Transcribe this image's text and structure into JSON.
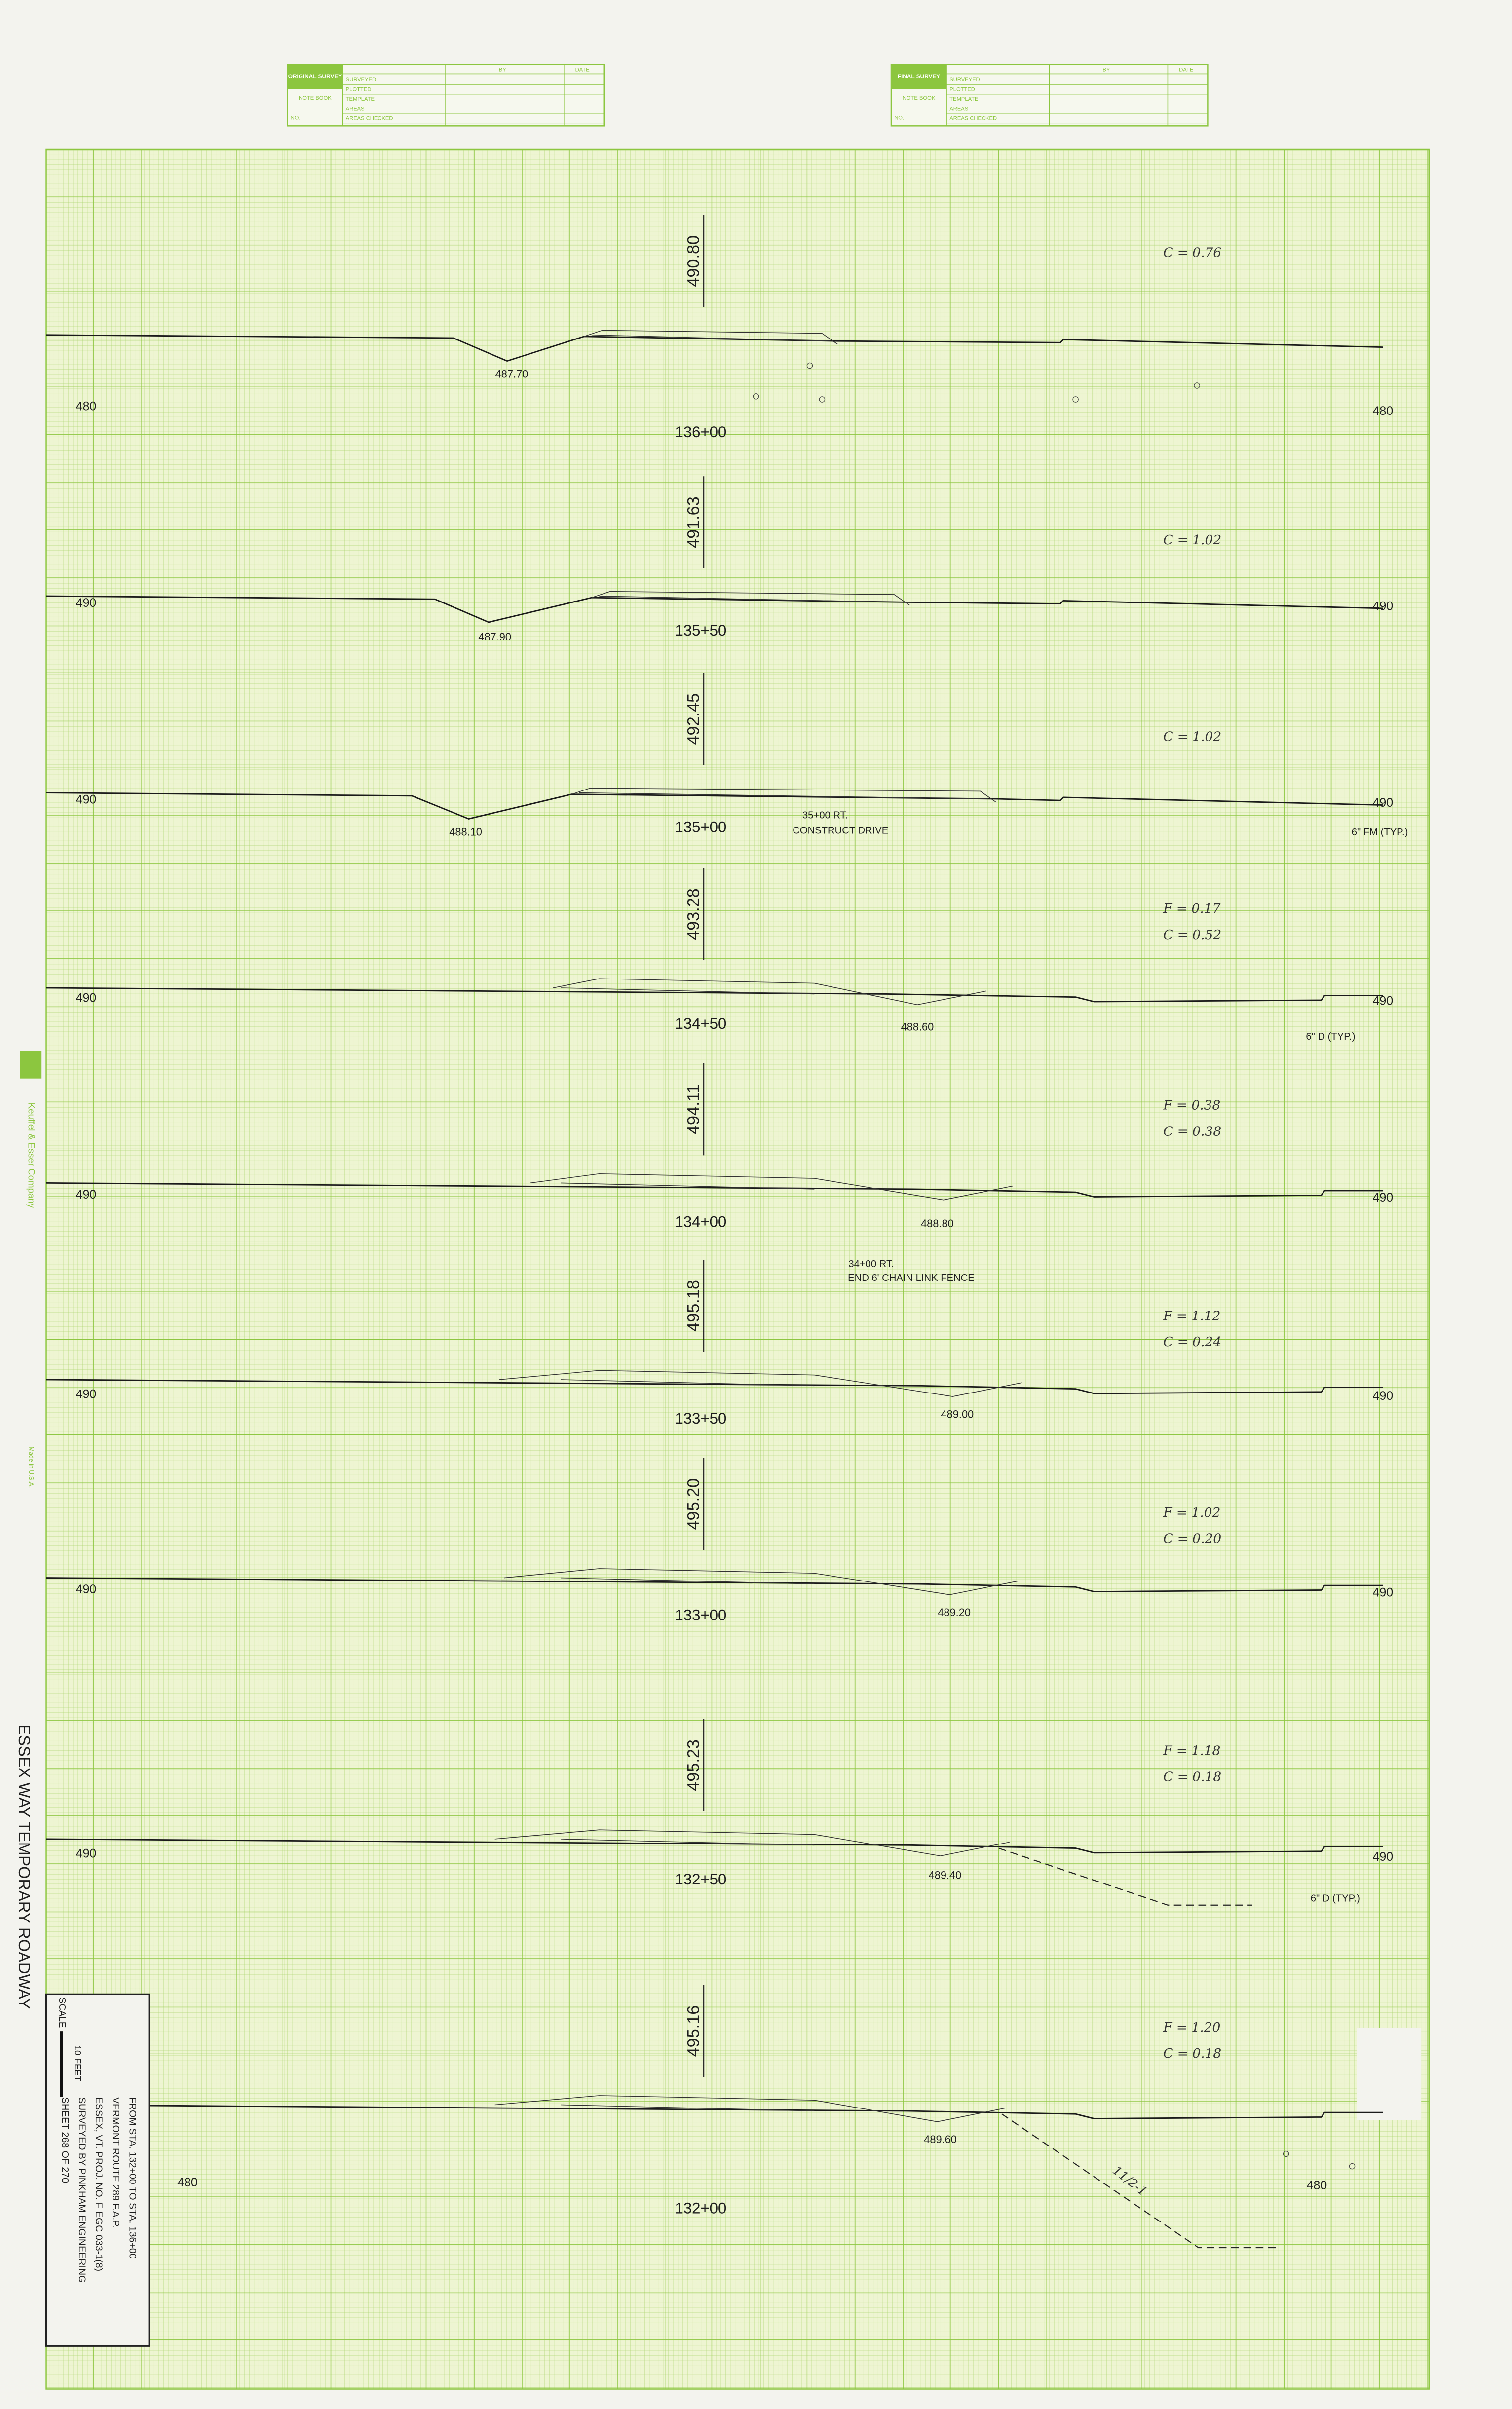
{
  "survey_boxes": [
    {
      "title": "ORIGINAL SURVEY",
      "book": "NOTE BOOK",
      "no": "NO.",
      "by": "BY",
      "date": "DATE",
      "rows": [
        "SURVEYED",
        "PLOTTED",
        "TEMPLATE",
        "AREAS",
        "AREAS CHECKED"
      ]
    },
    {
      "title": "FINAL SURVEY",
      "book": "NOTE BOOK",
      "no": "NO.",
      "by": "BY",
      "date": "DATE",
      "rows": [
        "SURVEYED",
        "PLOTTED",
        "TEMPLATE",
        "AREAS",
        "AREAS CHECKED"
      ]
    }
  ],
  "sections": [
    {
      "station": "136+00",
      "centerline_elevation": "490.80",
      "ditch_elevation": "487.70",
      "left_elevation": "480",
      "right_elevation": "480",
      "quantities": [
        "C = 0.76"
      ],
      "notes": []
    },
    {
      "station": "135+50",
      "centerline_elevation": "491.63",
      "ditch_elevation": "487.90",
      "left_elevation": "490",
      "right_elevation": "490",
      "quantities": [
        "C = 1.02"
      ],
      "notes": []
    },
    {
      "station": "135+00",
      "centerline_elevation": "492.45",
      "ditch_elevation": "488.10",
      "left_elevation": "490",
      "right_elevation": "490",
      "quantities": [
        "C = 1.02"
      ],
      "notes": [
        "35+00 RT.",
        "CONSTRUCT DRIVE",
        "6\" FM (TYP.)"
      ]
    },
    {
      "station": "134+50",
      "centerline_elevation": "493.28",
      "ditch_elevation": "488.60",
      "left_elevation": "490",
      "right_elevation": "490",
      "quantities": [
        "F = 0.17",
        "C = 0.52"
      ],
      "notes": [
        "6\" D (TYP.)"
      ]
    },
    {
      "station": "134+00",
      "centerline_elevation": "494.11",
      "ditch_elevation": "488.80",
      "left_elevation": "490",
      "right_elevation": "490",
      "quantities": [
        "F = 0.38",
        "C = 0.38"
      ],
      "notes": [
        "34+00 RT.",
        "END 6' CHAIN LINK FENCE"
      ]
    },
    {
      "station": "133+50",
      "centerline_elevation": "495.18",
      "ditch_elevation": "489.00",
      "left_elevation": "490",
      "right_elevation": "490",
      "quantities": [
        "F = 1.12",
        "C = 0.24"
      ],
      "notes": []
    },
    {
      "station": "133+00",
      "centerline_elevation": "495.20",
      "ditch_elevation": "489.20",
      "left_elevation": "490",
      "right_elevation": "490",
      "quantities": [
        "F = 1.02",
        "C = 0.20"
      ],
      "notes": []
    },
    {
      "station": "132+50",
      "centerline_elevation": "495.23",
      "ditch_elevation": "489.40",
      "left_elevation": "490",
      "right_elevation": "490",
      "quantities": [
        "F = 1.18",
        "C = 0.18"
      ],
      "notes": [
        "6\" D (TYP.)"
      ]
    },
    {
      "station": "132+00",
      "centerline_elevation": "495.16",
      "ditch_elevation": "489.60",
      "left_elevation": "480",
      "right_elevation": "480",
      "quantities": [
        "F = 1.20",
        "C = 0.18"
      ],
      "notes": [
        "11/2-1"
      ]
    }
  ],
  "side_title": "ESSEX WAY   TEMPORARY   ROADWAY",
  "title_block": {
    "scale": "SCALE",
    "scale_length": "10 FEET",
    "lines": [
      "FROM STA. 132+00  TO STA. 136+00",
      "VERMONT ROUTE 289 F.A.P.",
      "ESSEX, VT. PROJ. NO. F EGC 033-1(8)",
      "SURVEYED BY PINKHAM ENGINEERING",
      "SHEET 268  OF 270"
    ]
  },
  "paper_brand": [
    "Keuffel & Esser Company",
    "Made in U.S.A."
  ]
}
